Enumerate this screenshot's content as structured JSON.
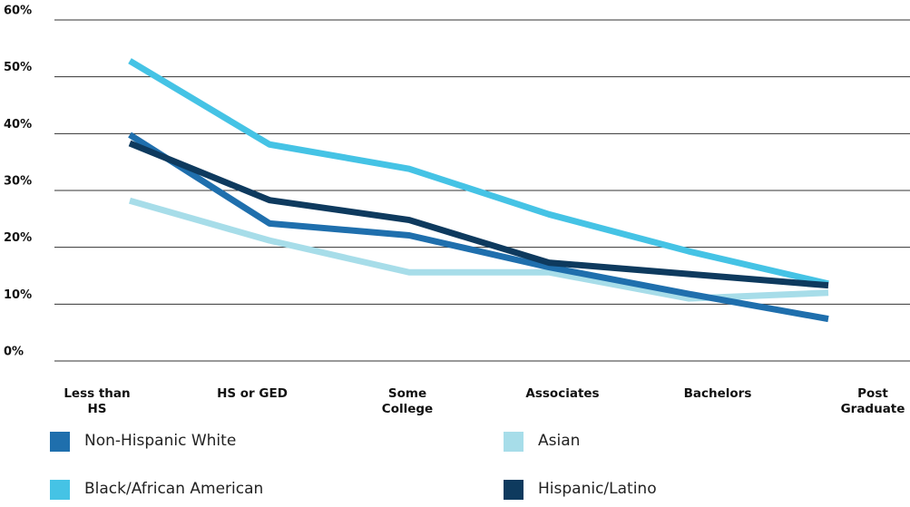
{
  "chart_data": {
    "type": "line",
    "categories": [
      "Less than\nHS",
      "HS or GED",
      "Some\nCollege",
      "Associates",
      "Bachelors",
      "Post\nGraduate"
    ],
    "series": [
      {
        "name": "Non-Hispanic White",
        "color": "#1f6fad",
        "values": [
          39.8,
          24.2,
          22.1,
          16.5,
          11.8,
          7.4
        ]
      },
      {
        "name": "Asian",
        "color": "#a7dde9",
        "values": [
          28.2,
          21.2,
          15.6,
          15.6,
          11.0,
          12.0
        ]
      },
      {
        "name": "Black/African American",
        "color": "#45c3e5",
        "values": [
          52.8,
          38.1,
          33.8,
          25.8,
          19.3,
          13.6
        ]
      },
      {
        "name": "Hispanic/Latino",
        "color": "#0e3a5e",
        "values": [
          38.3,
          28.3,
          24.8,
          17.3,
          15.3,
          13.3
        ]
      }
    ],
    "ylim": [
      0,
      60
    ],
    "yticks": [
      {
        "value": 0,
        "label": "0%"
      },
      {
        "value": 10,
        "label": "10%"
      },
      {
        "value": 20,
        "label": "20%"
      },
      {
        "value": 30,
        "label": "30%"
      },
      {
        "value": 40,
        "label": "40%"
      },
      {
        "value": 50,
        "label": "50%"
      },
      {
        "value": 60,
        "label": "60%"
      }
    ],
    "grid": true
  }
}
